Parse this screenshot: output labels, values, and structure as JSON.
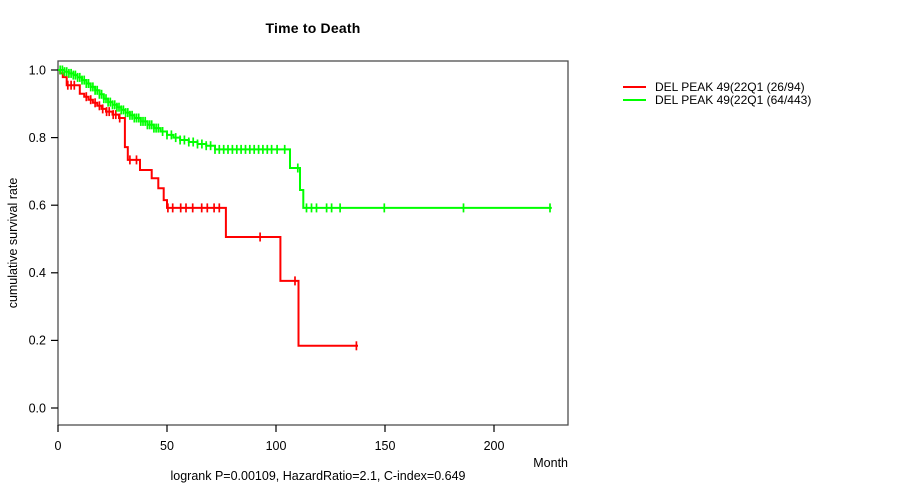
{
  "window": {
    "background": "#ffffff"
  },
  "chart_data": {
    "type": "line",
    "subtype": "kaplan-meier-step",
    "title": "Time to Death",
    "xlabel": "Month",
    "ylabel": "cumulative survival rate",
    "annotation": "logrank P=0.00109, HazardRatio=2.1, C-index=0.649",
    "x_ticks": [
      0,
      50,
      100,
      150,
      200
    ],
    "y_tick_labels": [
      "0.0",
      "0.2",
      "0.4",
      "0.6",
      "0.8",
      "1.0"
    ],
    "y_tick_values": [
      0.0,
      0.2,
      0.4,
      0.6,
      0.8,
      1.0
    ],
    "xlim": [
      0,
      234
    ],
    "ylim": [
      -0.05,
      1.03
    ],
    "grid": false,
    "legend_position": "right-outside",
    "box_color": "#4d4d4d",
    "axis_color": "#000000",
    "series": [
      {
        "name": "DEL PEAK 49(22Q1 (26/94)",
        "color": "#ff0000",
        "end_month": 137.6,
        "steps": [
          [
            0,
            1.0
          ],
          [
            1,
            0.99
          ],
          [
            2.2,
            0.979
          ],
          [
            4,
            0.955
          ],
          [
            10,
            0.93
          ],
          [
            12,
            0.921
          ],
          [
            14,
            0.912
          ],
          [
            16,
            0.903
          ],
          [
            18,
            0.894
          ],
          [
            20,
            0.885
          ],
          [
            22,
            0.877
          ],
          [
            25,
            0.868
          ],
          [
            28,
            0.858
          ],
          [
            30.7,
            0.772
          ],
          [
            32,
            0.734
          ],
          [
            37.6,
            0.704
          ],
          [
            43,
            0.68
          ],
          [
            46,
            0.65
          ],
          [
            48.5,
            0.615
          ],
          [
            50,
            0.592
          ],
          [
            77,
            0.506
          ],
          [
            102,
            0.376
          ],
          [
            110.3,
            0.184
          ]
        ],
        "censor_months": [
          4.5,
          6,
          7.5,
          13,
          15,
          17,
          19,
          20.5,
          22.3,
          23.5,
          25.3,
          26.5,
          28.3,
          33,
          36,
          50.4,
          52.6,
          56.3,
          58.7,
          61.8,
          65.9,
          68.5,
          71.6,
          74,
          92.7,
          108.7,
          136.9
        ]
      },
      {
        "name": "DEL PEAK 49(22Q1 (64/443)",
        "color": "#00ff00",
        "end_month": 226.5,
        "steps": [
          [
            0,
            1.0
          ],
          [
            3,
            0.995
          ],
          [
            5,
            0.99
          ],
          [
            7,
            0.985
          ],
          [
            9,
            0.978
          ],
          [
            11,
            0.97
          ],
          [
            13,
            0.96
          ],
          [
            15,
            0.95
          ],
          [
            17,
            0.94
          ],
          [
            19,
            0.928
          ],
          [
            21,
            0.915
          ],
          [
            23,
            0.905
          ],
          [
            25,
            0.897
          ],
          [
            27,
            0.89
          ],
          [
            29,
            0.882
          ],
          [
            31,
            0.874
          ],
          [
            33,
            0.866
          ],
          [
            35,
            0.858
          ],
          [
            38,
            0.848
          ],
          [
            41,
            0.838
          ],
          [
            44,
            0.828
          ],
          [
            47,
            0.818
          ],
          [
            50,
            0.808
          ],
          [
            53,
            0.8
          ],
          [
            56,
            0.793
          ],
          [
            60,
            0.787
          ],
          [
            64,
            0.781
          ],
          [
            68,
            0.776
          ],
          [
            72,
            0.765
          ],
          [
            106.4,
            0.71
          ],
          [
            111,
            0.645
          ],
          [
            112.5,
            0.592
          ]
        ],
        "censor_months": [
          1,
          2,
          3,
          4,
          5,
          6,
          7,
          8,
          9,
          10,
          11,
          12,
          13,
          14,
          15,
          16,
          17,
          18,
          19,
          20,
          21,
          22,
          23,
          24,
          25,
          26,
          27,
          28,
          29,
          30,
          31,
          32,
          33,
          34,
          35,
          36,
          37,
          38,
          39,
          40,
          41,
          42,
          43,
          44,
          45,
          46,
          48,
          50,
          52,
          54,
          56,
          58,
          60,
          62,
          64,
          66,
          68,
          70,
          72,
          74,
          76,
          78,
          80,
          82,
          84,
          86,
          88,
          90,
          92,
          94,
          96,
          98,
          100.5,
          104,
          110,
          114,
          116.3,
          118.6,
          123.2,
          125.5,
          129.4,
          149.7,
          186,
          225.7
        ]
      }
    ]
  }
}
